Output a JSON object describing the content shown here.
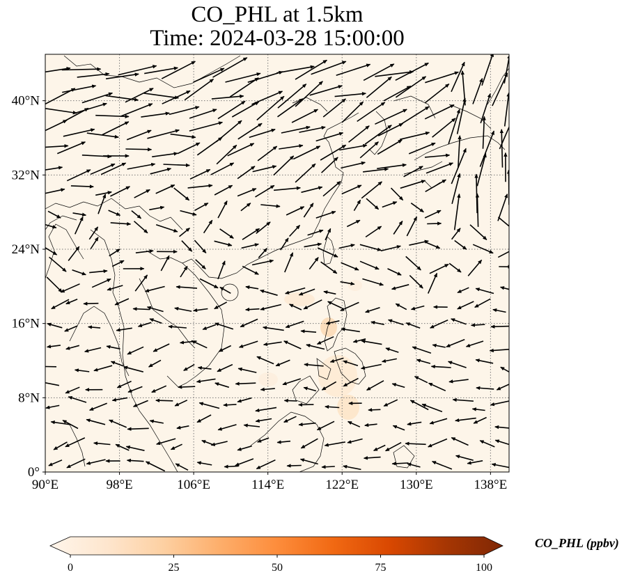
{
  "title": {
    "line1": "CO_PHL at 1.5km",
    "line2": "Time: 2024-03-28 15:00:00"
  },
  "map": {
    "field": "CO_PHL",
    "level": "1.5km",
    "lon_range": [
      90,
      140
    ],
    "lat_range": [
      0,
      45
    ],
    "x_ticks": [
      {
        "value": 90,
        "label": "90°E"
      },
      {
        "value": 98,
        "label": "98°E"
      },
      {
        "value": 106,
        "label": "106°E"
      },
      {
        "value": 114,
        "label": "114°E"
      },
      {
        "value": 122,
        "label": "122°E"
      },
      {
        "value": 130,
        "label": "130°E"
      },
      {
        "value": 138,
        "label": "138°E"
      }
    ],
    "y_ticks": [
      {
        "value": 0,
        "label": "0°"
      },
      {
        "value": 8,
        "label": "8°N"
      },
      {
        "value": 16,
        "label": "16°N"
      },
      {
        "value": 24,
        "label": "24°N"
      },
      {
        "value": 32,
        "label": "32°N"
      },
      {
        "value": 40,
        "label": "40°N"
      }
    ],
    "gridlines": true,
    "field_color": "#fdf5e9",
    "land_color": "#fdf5e9",
    "coast_color": "#000000"
  },
  "colorbar": {
    "label": "CO_PHL (ppbv)",
    "min": 0,
    "max": 100,
    "extend": "both",
    "ticks": [
      {
        "value": 0,
        "label": "0"
      },
      {
        "value": 25,
        "label": "25"
      },
      {
        "value": 50,
        "label": "50"
      },
      {
        "value": 75,
        "label": "75"
      },
      {
        "value": 100,
        "label": "100"
      }
    ],
    "colormap": [
      "#fff5eb",
      "#fee6ce",
      "#fdd0a2",
      "#fdae6b",
      "#fd8d3c",
      "#f16913",
      "#d94801",
      "#a63603",
      "#7f2704"
    ]
  }
}
